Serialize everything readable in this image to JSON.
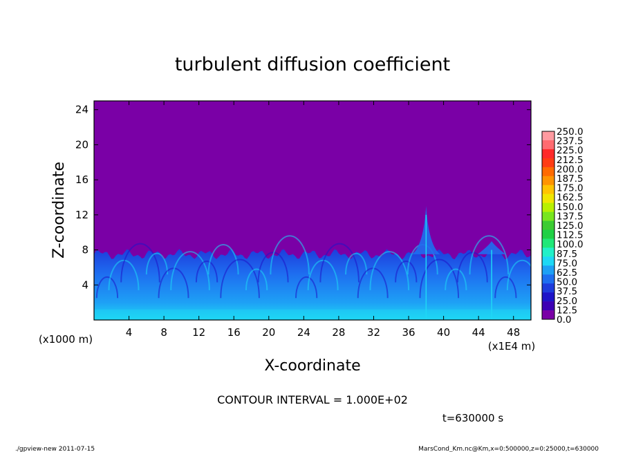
{
  "chart_data": {
    "type": "heatmap",
    "title": "turbulent diffusion coefficient",
    "xlabel": "X-coordinate",
    "ylabel": "Z-coordinate",
    "x_unit_label": "(x1E4 m)",
    "y_unit_label": "(x1000 m)",
    "xlim": [
      0,
      50
    ],
    "ylim": [
      0,
      25
    ],
    "x_ticks": [
      "4",
      "8",
      "12",
      "16",
      "20",
      "24",
      "28",
      "32",
      "36",
      "40",
      "44",
      "48"
    ],
    "y_ticks": [
      "4",
      "8",
      "12",
      "16",
      "20",
      "24"
    ],
    "colorbar": {
      "levels": [
        "250.0",
        "237.5",
        "225.0",
        "212.5",
        "200.0",
        "187.5",
        "175.0",
        "162.5",
        "150.0",
        "137.5",
        "125.0",
        "112.5",
        "100.0",
        "87.5",
        "75.0",
        "62.5",
        "50.0",
        "37.5",
        "25.0",
        "12.5",
        "0.0"
      ],
      "colors": [
        "#ff9aa0",
        "#ff6b70",
        "#ff2a2a",
        "#ff3c14",
        "#ff6a00",
        "#ff9400",
        "#ffc400",
        "#f0e600",
        "#b8f000",
        "#78e61e",
        "#3ccc32",
        "#1fd045",
        "#20e878",
        "#21f0c8",
        "#1ed8f5",
        "#1ea0f5",
        "#1e6ef0",
        "#1e3cdc",
        "#1e14c8",
        "#3c00b4",
        "#7a00a6"
      ]
    },
    "background_value": 0.0,
    "turbulent_layer_top_km": 7.5,
    "features": [
      {
        "x": 38.0,
        "peak_z_km": 13.0
      },
      {
        "x": 45.5,
        "peak_z_km": 9.0
      }
    ]
  },
  "annotations": {
    "contour_interval": "CONTOUR INTERVAL = 1.000E+02",
    "time": "t=630000 s",
    "footer_left": "./gpview-new 2011-07-15",
    "footer_right": "MarsCond_Km.nc@Km,x=0:500000,z=0:25000,t=630000"
  }
}
